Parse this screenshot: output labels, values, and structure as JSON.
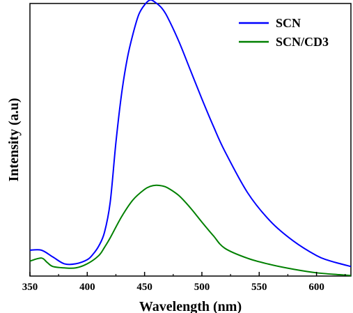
{
  "chart_data": {
    "type": "line",
    "title": "",
    "xlabel": "Wavelength (nm)",
    "ylabel": "Intensity (a.u)",
    "xlim": [
      350,
      630
    ],
    "ylim": [
      0,
      100
    ],
    "xticks": [
      350,
      400,
      450,
      500,
      550,
      600
    ],
    "yticks_visible": false,
    "grid": false,
    "legend_position": "top-right",
    "series": [
      {
        "name": "SCN",
        "color": "#0000ff",
        "x": [
          350,
          360,
          370,
          380,
          390,
          400,
          405,
          410,
          415,
          420,
          425,
          430,
          435,
          440,
          445,
          450,
          455,
          460,
          465,
          470,
          480,
          490,
          500,
          510,
          520,
          540,
          560,
          580,
          600,
          610,
          620,
          630
        ],
        "y": [
          9.5,
          9.5,
          7,
          4.5,
          4.5,
          6,
          8,
          11,
          16,
          27,
          49,
          67,
          80,
          89,
          96,
          99.5,
          101.3,
          100.2,
          98.3,
          95,
          86,
          75.5,
          65,
          55,
          45.8,
          30.5,
          20,
          12.8,
          7.5,
          5.8,
          4.6,
          3.5
        ]
      },
      {
        "name": "SCN/CD3",
        "color": "#008000",
        "x": [
          350,
          360,
          365,
          370,
          380,
          390,
          400,
          410,
          415,
          420,
          430,
          440,
          450,
          455,
          460,
          465,
          470,
          480,
          490,
          500,
          510,
          520,
          540,
          560,
          580,
          600,
          620,
          630
        ],
        "y": [
          5.5,
          6.6,
          5,
          3.5,
          3,
          3,
          4.5,
          7.5,
          10.5,
          14,
          21.8,
          28,
          31.8,
          32.9,
          33.3,
          33.1,
          32.4,
          29.5,
          25,
          19.8,
          14.8,
          10.2,
          6.5,
          4.2,
          2.5,
          1.2,
          0.5,
          0.2
        ]
      }
    ]
  }
}
